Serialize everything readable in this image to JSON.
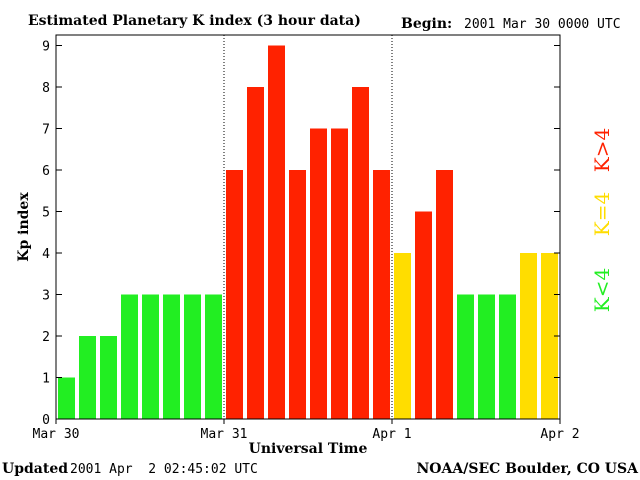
{
  "header": {
    "title": "Estimated Planetary K index (3 hour data)",
    "begin_label": "Begin:",
    "begin_value": "2001 Mar 30 0000 UTC"
  },
  "footer": {
    "updated_label": "Updated",
    "updated_value": "2001 Apr  2 02:45:02 UTC",
    "source": "NOAA/SEC Boulder, CO USA"
  },
  "legend": {
    "low": "K<4",
    "mid": "K=4",
    "high": "K>4"
  },
  "colors": {
    "low": "#22ee22",
    "mid": "#ffdd00",
    "high": "#ff2200",
    "axis": "#000000"
  },
  "chart_data": {
    "type": "bar",
    "title": "Estimated Planetary K index (3 hour data)",
    "xlabel": "Universal Time",
    "ylabel": "Kp index",
    "ylim": [
      0,
      9
    ],
    "yticks": [
      0,
      1,
      2,
      3,
      4,
      5,
      6,
      7,
      8,
      9
    ],
    "day_labels": [
      "Mar 30",
      "Mar 31",
      "Apr 1",
      "Apr 2"
    ],
    "bars_per_day": 8,
    "values": [
      1,
      2,
      2,
      3,
      3,
      3,
      3,
      3,
      6,
      8,
      9,
      6,
      7,
      7,
      8,
      6,
      4,
      5,
      6,
      3,
      3,
      3,
      4,
      4
    ],
    "day_separators": [
      "Mar 31",
      "Apr 1"
    ],
    "legend_position": "right"
  }
}
